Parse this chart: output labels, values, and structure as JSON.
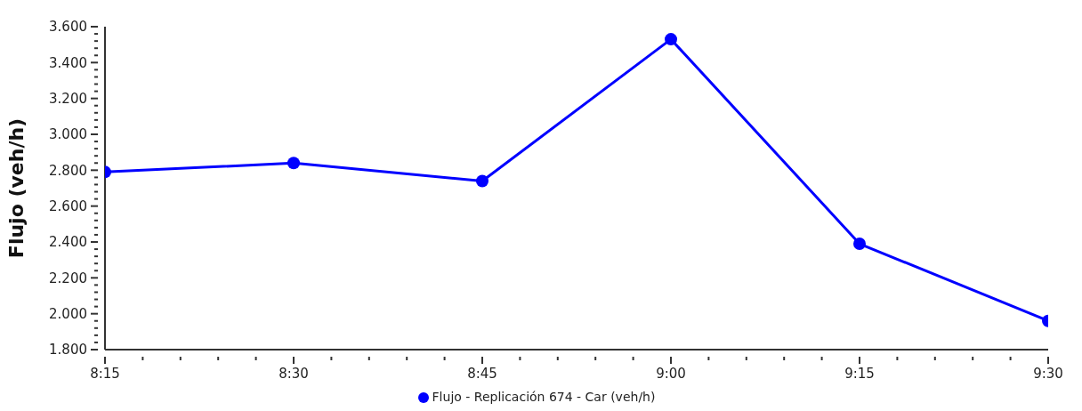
{
  "chart_data": {
    "type": "line",
    "ylabel": "Flujo (veh/h)",
    "x": [
      8.25,
      8.5,
      8.75,
      9,
      9.25,
      9.5
    ],
    "series": [
      {
        "name": "Flujo - Replicación 674 - Car (veh/h)",
        "color": "#0000ff",
        "values": [
          2790,
          2840,
          2740,
          3530,
          2390,
          1960
        ]
      }
    ],
    "xlim": [
      8.25,
      9.5
    ],
    "xticks": [
      {
        "value": 8.25,
        "label": "8:15"
      },
      {
        "value": 8.3,
        "label": null
      },
      {
        "value": 8.35,
        "label": null
      },
      {
        "value": 8.4,
        "label": null
      },
      {
        "value": 8.45,
        "label": null
      },
      {
        "value": 8.5,
        "label": "8:30"
      },
      {
        "value": 8.55,
        "label": null
      },
      {
        "value": 8.6,
        "label": null
      },
      {
        "value": 8.65,
        "label": null
      },
      {
        "value": 8.7,
        "label": null
      },
      {
        "value": 8.75,
        "label": "8:45"
      },
      {
        "value": 8.8,
        "label": null
      },
      {
        "value": 8.85,
        "label": null
      },
      {
        "value": 8.9,
        "label": null
      },
      {
        "value": 8.95,
        "label": null
      },
      {
        "value": 9,
        "label": "9:00"
      },
      {
        "value": 9.05,
        "label": null
      },
      {
        "value": 9.1,
        "label": null
      },
      {
        "value": 9.15,
        "label": null
      },
      {
        "value": 9.2,
        "label": null
      },
      {
        "value": 9.25,
        "label": "9:15"
      },
      {
        "value": 9.3,
        "label": null
      },
      {
        "value": 9.35,
        "label": null
      },
      {
        "value": 9.4,
        "label": null
      },
      {
        "value": 9.45,
        "label": null
      },
      {
        "value": 9.5,
        "label": "9:30"
      }
    ],
    "ylim": [
      1800,
      3600
    ],
    "yticks": [
      {
        "value": 1800,
        "label": "1.800"
      },
      {
        "value": 1840,
        "label": null
      },
      {
        "value": 1880,
        "label": null
      },
      {
        "value": 1920,
        "label": null
      },
      {
        "value": 1960,
        "label": null
      },
      {
        "value": 2000,
        "label": "2.000"
      },
      {
        "value": 2040,
        "label": null
      },
      {
        "value": 2080,
        "label": null
      },
      {
        "value": 2120,
        "label": null
      },
      {
        "value": 2160,
        "label": null
      },
      {
        "value": 2200,
        "label": "2.200"
      },
      {
        "value": 2240,
        "label": null
      },
      {
        "value": 2280,
        "label": null
      },
      {
        "value": 2320,
        "label": null
      },
      {
        "value": 2360,
        "label": null
      },
      {
        "value": 2400,
        "label": "2.400"
      },
      {
        "value": 2440,
        "label": null
      },
      {
        "value": 2480,
        "label": null
      },
      {
        "value": 2520,
        "label": null
      },
      {
        "value": 2560,
        "label": null
      },
      {
        "value": 2600,
        "label": "2.600"
      },
      {
        "value": 2640,
        "label": null
      },
      {
        "value": 2680,
        "label": null
      },
      {
        "value": 2720,
        "label": null
      },
      {
        "value": 2760,
        "label": null
      },
      {
        "value": 2800,
        "label": "2.800"
      },
      {
        "value": 2840,
        "label": null
      },
      {
        "value": 2880,
        "label": null
      },
      {
        "value": 2920,
        "label": null
      },
      {
        "value": 2960,
        "label": null
      },
      {
        "value": 3000,
        "label": "3.000"
      },
      {
        "value": 3040,
        "label": null
      },
      {
        "value": 3080,
        "label": null
      },
      {
        "value": 3120,
        "label": null
      },
      {
        "value": 3160,
        "label": null
      },
      {
        "value": 3200,
        "label": "3.200"
      },
      {
        "value": 3240,
        "label": null
      },
      {
        "value": 3280,
        "label": null
      },
      {
        "value": 3320,
        "label": null
      },
      {
        "value": 3360,
        "label": null
      },
      {
        "value": 3400,
        "label": "3.400"
      },
      {
        "value": 3440,
        "label": null
      },
      {
        "value": 3480,
        "label": null
      },
      {
        "value": 3520,
        "label": null
      },
      {
        "value": 3560,
        "label": null
      },
      {
        "value": 3600,
        "label": "3.600"
      }
    ],
    "legend": "bottom",
    "marker": "circle",
    "line_style": "solid",
    "grid": false
  }
}
